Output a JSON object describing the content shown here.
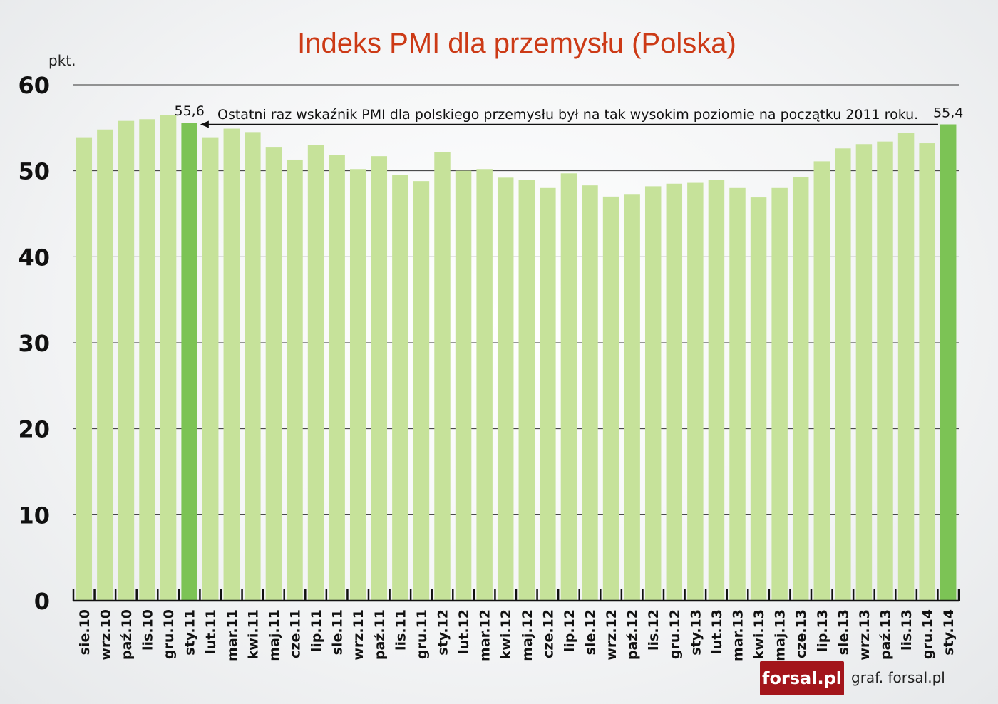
{
  "chart_data": {
    "type": "bar",
    "title": "Indeks PMI dla przemysłu (Polska)",
    "ylabel": "pkt.",
    "ylim": [
      0,
      60
    ],
    "yticks": [
      "0",
      "10",
      "20",
      "30",
      "40",
      "50",
      "60"
    ],
    "grid": true,
    "categories": [
      "sie.10",
      "wrz.10",
      "paź.10",
      "lis.10",
      "gru.10",
      "sty.11",
      "lut.11",
      "mar.11",
      "kwi.11",
      "maj.11",
      "cze.11",
      "lip.11",
      "sie.11",
      "wrz.11",
      "paź.11",
      "lis.11",
      "gru.11",
      "sty.12",
      "lut.12",
      "mar.12",
      "kwi.12",
      "maj.12",
      "cze.12",
      "lip.12",
      "sie.12",
      "wrz.12",
      "paź.12",
      "lis.12",
      "gru.12",
      "sty.13",
      "lut.13",
      "mar.13",
      "kwi.13",
      "maj.13",
      "cze.13",
      "lip.13",
      "sie.13",
      "wrz.13",
      "paź.13",
      "lis.13",
      "gru.14",
      "sty.14"
    ],
    "values": [
      53.9,
      54.8,
      55.8,
      56.0,
      56.5,
      55.6,
      53.9,
      54.9,
      54.5,
      52.7,
      51.3,
      53.0,
      51.8,
      50.2,
      51.7,
      49.5,
      48.8,
      52.2,
      50.0,
      50.2,
      49.2,
      48.9,
      48.0,
      49.7,
      48.3,
      47.0,
      47.3,
      48.2,
      48.5,
      48.6,
      48.9,
      48.0,
      46.9,
      48.0,
      49.3,
      51.1,
      52.6,
      53.1,
      53.4,
      54.4,
      53.2,
      55.4
    ],
    "highlight_indices": [
      5,
      41
    ],
    "data_labels": [
      {
        "index": 5,
        "text": "55,6"
      },
      {
        "index": 41,
        "text": "55,4"
      }
    ],
    "annotation": "Ostatni raz wskaźnik PMI dla polskiego przemysłu był na tak wysokim poziomie na początku 2011 roku.",
    "colors": {
      "bar": "#c6e29a",
      "highlight": "#7cc355",
      "title": "#cc3a16",
      "grid": "#333333"
    }
  },
  "footer": {
    "logo_text": "forsal.pl",
    "logo_color": "#a3151b",
    "credit": "graf. forsal.pl"
  }
}
